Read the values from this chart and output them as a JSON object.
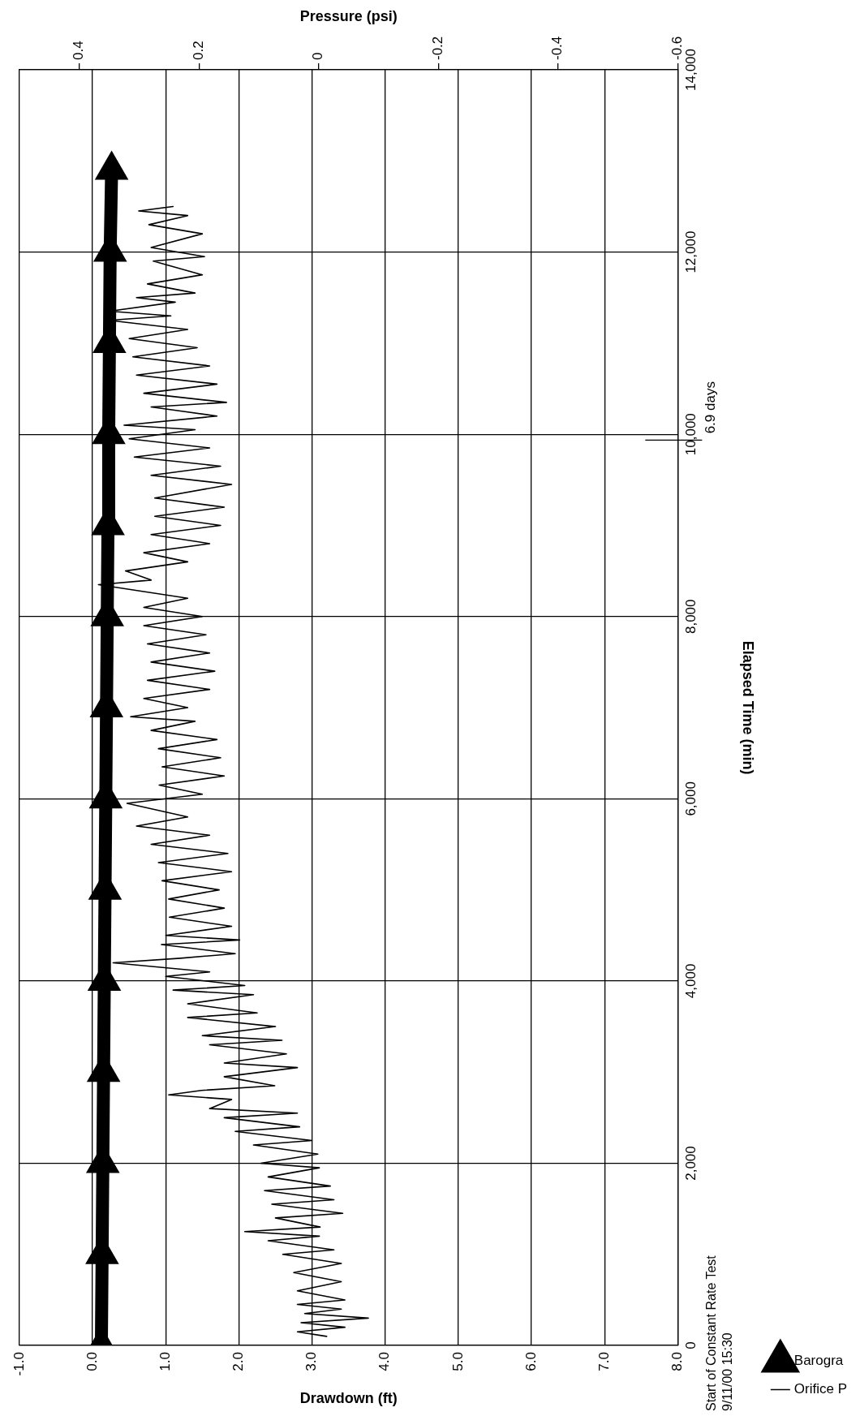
{
  "chart_data": {
    "type": "line",
    "xlabel": "Drawdown (ft)",
    "x2label": "Pressure (psi)",
    "ylabel": "Elapsed Time (min)",
    "xlim": [
      -1,
      8
    ],
    "xticks": [
      {
        "value": -1,
        "label": "-1.0"
      },
      {
        "value": 0,
        "label": "0.0"
      },
      {
        "value": 1,
        "label": "1.0"
      },
      {
        "value": 2,
        "label": "2.0"
      },
      {
        "value": 3,
        "label": "3.0"
      },
      {
        "value": 4,
        "label": "4.0"
      },
      {
        "value": 5,
        "label": "5.0"
      },
      {
        "value": 6,
        "label": "6.0"
      },
      {
        "value": 7,
        "label": "7.0"
      },
      {
        "value": 8,
        "label": "8.0"
      }
    ],
    "x2lim": [
      0.5,
      -0.6
    ],
    "x2ticks": [
      0.4,
      0.2,
      0,
      -0.2,
      -0.4,
      -0.6
    ],
    "ylim": [
      0,
      14000
    ],
    "yticks": [
      0,
      {
        "value": 2000,
        "label": "2,000"
      },
      {
        "value": 4000,
        "label": "4,000"
      },
      {
        "value": 6000,
        "label": "6,000"
      },
      {
        "value": 8000,
        "label": "8,000"
      },
      {
        "value": 10000,
        "label": "10,000"
      },
      {
        "value": 12000,
        "label": "12,000"
      },
      {
        "value": 14000,
        "label": "14,000"
      }
    ],
    "ref_lines": [
      {
        "axis": "y",
        "value": 9936,
        "label": "6.9 days"
      }
    ],
    "grid": true,
    "legend": "bottom right",
    "annotations": [
      "Start of Constant Rate Test\n9/11/00 15:30"
    ],
    "series": [
      {
        "name": "Barogra",
        "marker": "triangle",
        "color": "#000000",
        "x": [
          0.12,
          0.13,
          0.14,
          0.15,
          0.16,
          0.17,
          0.18,
          0.19,
          0.2,
          0.21,
          0.22,
          0.23,
          0.24,
          0.26
        ],
        "values": [
          0,
          1000,
          2000,
          3000,
          4000,
          5000,
          6000,
          7000,
          8000,
          9000,
          10000,
          11000,
          12000,
          12900
        ]
      },
      {
        "name": "Orifice P",
        "marker": "none",
        "color": "#000000",
        "x": [
          3.2,
          2.8,
          3.45,
          2.85,
          3.77,
          2.9,
          3.4,
          2.8,
          3.45,
          2.8,
          3.4,
          2.75,
          3.4,
          2.6,
          3.3,
          2.4,
          3.1,
          2.08,
          3.11,
          2.5,
          3.42,
          2.45,
          3.3,
          2.35,
          3.25,
          2.4,
          3.1,
          2.3,
          3.08,
          2.2,
          3.0,
          1.95,
          2.83,
          1.8,
          2.8,
          1.6,
          1.9,
          1.04,
          1.49,
          2.49,
          1.8,
          2.8,
          1.8,
          2.65,
          1.6,
          2.59,
          1.5,
          2.5,
          1.3,
          2.25,
          1.3,
          2.2,
          1.1,
          2.08,
          1.0,
          1.6,
          0.28,
          1.2,
          1.95,
          0.94,
          2.01,
          1.0,
          1.9,
          1.05,
          1.8,
          1.04,
          1.73,
          0.95,
          1.9,
          0.9,
          1.85,
          0.8,
          1.6,
          0.6,
          1.3,
          0.47,
          1.5,
          0.91,
          1.8,
          0.95,
          1.75,
          0.9,
          1.7,
          0.8,
          1.4,
          0.52,
          1.3,
          0.7,
          1.6,
          0.75,
          1.67,
          0.8,
          1.6,
          0.75,
          1.55,
          0.7,
          1.5,
          0.7,
          1.3,
          0.08,
          0.8,
          0.45,
          1.3,
          0.7,
          1.6,
          0.8,
          1.75,
          0.85,
          1.8,
          0.85,
          1.9,
          0.8,
          1.75,
          0.57,
          1.6,
          0.5,
          1.4,
          0.43,
          1.7,
          0.8,
          1.83,
          0.7,
          1.7,
          0.6,
          1.6,
          0.55,
          1.43,
          0.5,
          1.3,
          0.22,
          1.07,
          0.23,
          1.13,
          0.6,
          1.4,
          0.75,
          1.5,
          0.83,
          1.53,
          0.8,
          1.5,
          0.77,
          1.3,
          0.63,
          1.1
        ],
        "values": [
          100,
          150,
          200,
          250,
          300,
          350,
          400,
          450,
          500,
          600,
          700,
          800,
          900,
          1000,
          1050,
          1150,
          1200,
          1250,
          1300,
          1400,
          1450,
          1550,
          1600,
          1700,
          1750,
          1850,
          1950,
          2000,
          2100,
          2200,
          2250,
          2350,
          2400,
          2500,
          2550,
          2600,
          2700,
          2750,
          2800,
          2850,
          2950,
          3050,
          3100,
          3200,
          3300,
          3350,
          3400,
          3500,
          3600,
          3650,
          3750,
          3850,
          3900,
          3950,
          4050,
          4100,
          4200,
          4250,
          4300,
          4400,
          4450,
          4500,
          4600,
          4700,
          4800,
          4900,
          5000,
          5100,
          5200,
          5300,
          5400,
          5500,
          5600,
          5700,
          5800,
          5950,
          6050,
          6150,
          6250,
          6350,
          6450,
          6550,
          6650,
          6750,
          6850,
          6900,
          7000,
          7100,
          7200,
          7300,
          7400,
          7500,
          7600,
          7700,
          7800,
          7900,
          8000,
          8100,
          8200,
          8350,
          8400,
          8500,
          8600,
          8700,
          8800,
          8900,
          9000,
          9100,
          9200,
          9300,
          9450,
          9550,
          9650,
          9750,
          9850,
          9950,
          10050,
          10100,
          10200,
          10300,
          10350,
          10450,
          10550,
          10650,
          10750,
          10850,
          10950,
          11050,
          11150,
          11250,
          11300,
          11350,
          11450,
          11500,
          11550,
          11650,
          11750,
          11900,
          11950,
          12050,
          12200,
          12300,
          12400,
          12450,
          12500
        ]
      }
    ]
  }
}
